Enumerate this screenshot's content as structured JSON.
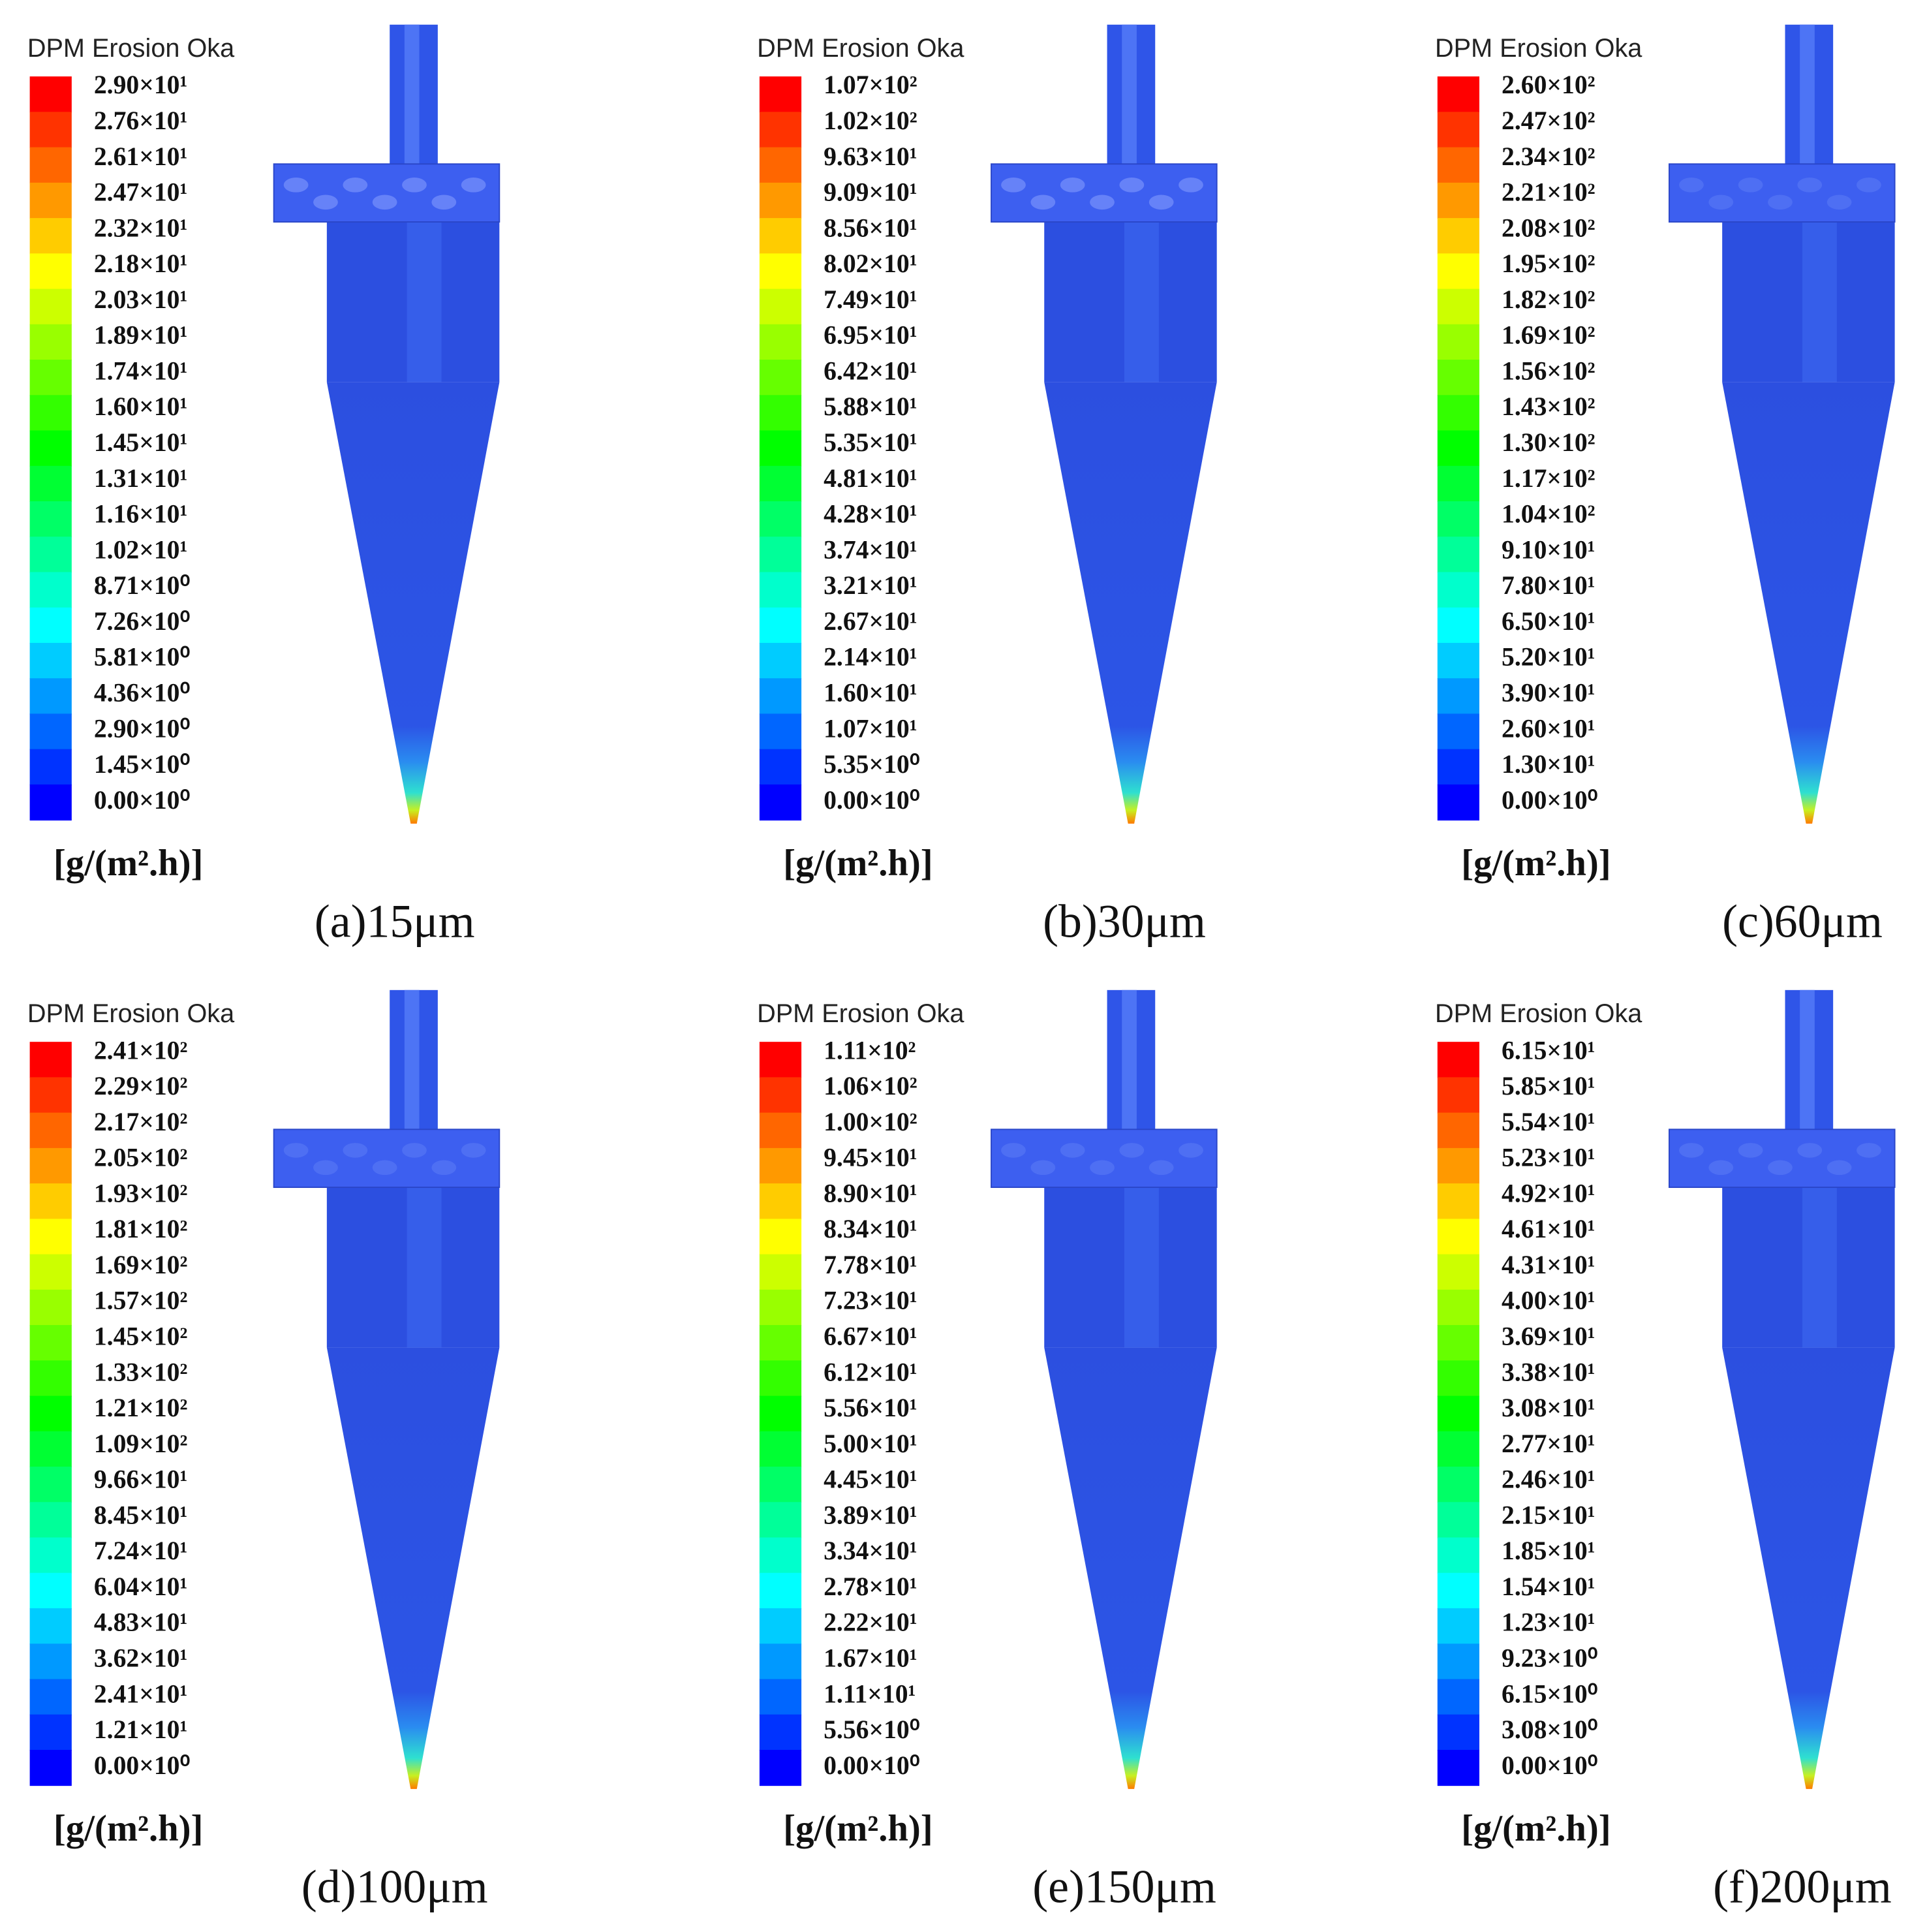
{
  "colormap": [
    "#ff0000",
    "#ff3300",
    "#ff6600",
    "#ff9900",
    "#ffcc00",
    "#ffff00",
    "#ccff00",
    "#99ff00",
    "#66ff00",
    "#33ff00",
    "#00ff00",
    "#00ff33",
    "#00ff66",
    "#00ff99",
    "#00ffcc",
    "#00ffff",
    "#00ccff",
    "#0099ff",
    "#0066ff",
    "#0033ff",
    "#0000ff"
  ],
  "panels": [
    {
      "legend_title": "DPM Erosion Oka",
      "labels": [
        "2.90×10¹",
        "2.76×10¹",
        "2.61×10¹",
        "2.47×10¹",
        "2.32×10¹",
        "2.18×10¹",
        "2.03×10¹",
        "1.89×10¹",
        "1.74×10¹",
        "1.60×10¹",
        "1.45×10¹",
        "1.31×10¹",
        "1.16×10¹",
        "1.02×10¹",
        "8.71×10⁰",
        "7.26×10⁰",
        "5.81×10⁰",
        "4.36×10⁰",
        "2.90×10⁰",
        "1.45×10⁰",
        "0.00×10⁰"
      ],
      "unit": "[g/(m².h)]",
      "caption": "(a)15μm"
    },
    {
      "legend_title": "DPM Erosion Oka",
      "labels": [
        "1.07×10²",
        "1.02×10²",
        "9.63×10¹",
        "9.09×10¹",
        "8.56×10¹",
        "8.02×10¹",
        "7.49×10¹",
        "6.95×10¹",
        "6.42×10¹",
        "5.88×10¹",
        "5.35×10¹",
        "4.81×10¹",
        "4.28×10¹",
        "3.74×10¹",
        "3.21×10¹",
        "2.67×10¹",
        "2.14×10¹",
        "1.60×10¹",
        "1.07×10¹",
        "5.35×10⁰",
        "0.00×10⁰"
      ],
      "unit": "[g/(m².h)]",
      "caption": "(b)30μm"
    },
    {
      "legend_title": "DPM Erosion Oka",
      "labels": [
        "2.60×10²",
        "2.47×10²",
        "2.34×10²",
        "2.21×10²",
        "2.08×10²",
        "1.95×10²",
        "1.82×10²",
        "1.69×10²",
        "1.56×10²",
        "1.43×10²",
        "1.30×10²",
        "1.17×10²",
        "1.04×10²",
        "9.10×10¹",
        "7.80×10¹",
        "6.50×10¹",
        "5.20×10¹",
        "3.90×10¹",
        "2.60×10¹",
        "1.30×10¹",
        "0.00×10⁰"
      ],
      "unit": "[g/(m².h)]",
      "caption": "(c)60μm"
    },
    {
      "legend_title": "DPM Erosion Oka",
      "labels": [
        "2.41×10²",
        "2.29×10²",
        "2.17×10²",
        "2.05×10²",
        "1.93×10²",
        "1.81×10²",
        "1.69×10²",
        "1.57×10²",
        "1.45×10²",
        "1.33×10²",
        "1.21×10²",
        "1.09×10²",
        "9.66×10¹",
        "8.45×10¹",
        "7.24×10¹",
        "6.04×10¹",
        "4.83×10¹",
        "3.62×10¹",
        "2.41×10¹",
        "1.21×10¹",
        "0.00×10⁰"
      ],
      "unit": "[g/(m².h)]",
      "caption": "(d)100μm"
    },
    {
      "legend_title": "DPM Erosion Oka",
      "labels": [
        "1.11×10²",
        "1.06×10²",
        "1.00×10²",
        "9.45×10¹",
        "8.90×10¹",
        "8.34×10¹",
        "7.78×10¹",
        "7.23×10¹",
        "6.67×10¹",
        "6.12×10¹",
        "5.56×10¹",
        "5.00×10¹",
        "4.45×10¹",
        "3.89×10¹",
        "3.34×10¹",
        "2.78×10¹",
        "2.22×10¹",
        "1.67×10¹",
        "1.11×10¹",
        "5.56×10⁰",
        "0.00×10⁰"
      ],
      "unit": "[g/(m².h)]",
      "caption": "(e)150μm"
    },
    {
      "legend_title": "DPM Erosion Oka",
      "labels": [
        "6.15×10¹",
        "5.85×10¹",
        "5.54×10¹",
        "5.23×10¹",
        "4.92×10¹",
        "4.61×10¹",
        "4.31×10¹",
        "4.00×10¹",
        "3.69×10¹",
        "3.38×10¹",
        "3.08×10¹",
        "2.77×10¹",
        "2.46×10¹",
        "2.15×10¹",
        "1.85×10¹",
        "1.54×10¹",
        "1.23×10¹",
        "9.23×10⁰",
        "6.15×10⁰",
        "3.08×10⁰",
        "0.00×10⁰"
      ],
      "unit": "[g/(m².h)]",
      "caption": "(f)200μm"
    }
  ]
}
